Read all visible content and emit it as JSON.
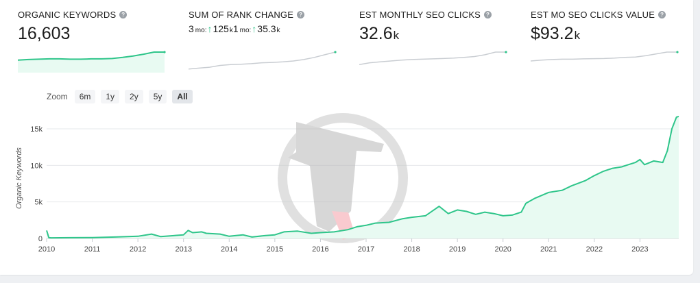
{
  "metrics": {
    "organic_keywords": {
      "label": "ORGANIC KEYWORDS",
      "value": "16,603",
      "spark": [
        0.55,
        0.58,
        0.6,
        0.62,
        0.62,
        0.6,
        0.6,
        0.62,
        0.62,
        0.64,
        0.7,
        0.78,
        0.88,
        1.0,
        1.0
      ]
    },
    "rank_change": {
      "label": "SUM OF RANK CHANGE",
      "p1_prefix": "3",
      "p1_period": "mo:",
      "p1_value": "125",
      "p1_unit": "k",
      "p2_prefix": "1",
      "p2_period": "mo:",
      "p2_value": "35.3",
      "p2_unit": "k",
      "spark": [
        0.05,
        0.1,
        0.15,
        0.25,
        0.3,
        0.32,
        0.35,
        0.4,
        0.42,
        0.45,
        0.5,
        0.58,
        0.7,
        0.85,
        1.0
      ]
    },
    "seo_clicks": {
      "label": "EST MONTHLY SEO CLICKS",
      "value": "32.6",
      "unit": "k",
      "spark": [
        0.3,
        0.4,
        0.45,
        0.5,
        0.55,
        0.58,
        0.6,
        0.62,
        0.64,
        0.66,
        0.7,
        0.75,
        0.85,
        1.0,
        1.0
      ]
    },
    "seo_clicks_value": {
      "label": "EST MO SEO CLICKS VALUE",
      "value": "$93.2",
      "unit": "k",
      "spark": [
        0.5,
        0.55,
        0.58,
        0.6,
        0.6,
        0.62,
        0.63,
        0.64,
        0.66,
        0.7,
        0.72,
        0.8,
        0.9,
        1.0,
        1.0
      ]
    }
  },
  "colors": {
    "accent": "#2ec58a",
    "fill": "#e8faf2",
    "spark_gray": "#c9cdd2"
  },
  "zoom": {
    "label": "Zoom",
    "options": [
      "6m",
      "1y",
      "2y",
      "5y",
      "All"
    ],
    "active": "All"
  },
  "chart_data": {
    "type": "area",
    "title": "",
    "xlabel": "",
    "ylabel": "Organic Keywords",
    "x_ticks": [
      "2010",
      "2011",
      "2012",
      "2013",
      "2014",
      "2015",
      "2016",
      "2017",
      "2018",
      "2019",
      "2020",
      "2021",
      "2022",
      "2023"
    ],
    "y_ticks": [
      "0",
      "5k",
      "10k",
      "15k"
    ],
    "ylim": [
      0,
      16500
    ],
    "xlim": [
      2010.0,
      2023.85
    ],
    "grid": true,
    "x": [
      2010.0,
      2010.05,
      2010.1,
      2010.5,
      2011.0,
      2011.5,
      2012.0,
      2012.3,
      2012.5,
      2013.0,
      2013.1,
      2013.2,
      2013.4,
      2013.5,
      2013.8,
      2014.0,
      2014.3,
      2014.5,
      2014.8,
      2015.0,
      2015.2,
      2015.5,
      2015.8,
      2016.0,
      2016.3,
      2016.6,
      2016.8,
      2017.0,
      2017.2,
      2017.5,
      2017.8,
      2018.0,
      2018.3,
      2018.6,
      2018.8,
      2019.0,
      2019.2,
      2019.4,
      2019.6,
      2019.8,
      2020.0,
      2020.2,
      2020.4,
      2020.5,
      2020.7,
      2021.0,
      2021.3,
      2021.5,
      2021.8,
      2022.0,
      2022.2,
      2022.4,
      2022.6,
      2022.7,
      2022.9,
      2023.0,
      2023.1,
      2023.3,
      2023.5,
      2023.6,
      2023.7,
      2023.8,
      2023.85
    ],
    "values": [
      1100,
      100,
      80,
      100,
      120,
      200,
      300,
      600,
      250,
      500,
      1100,
      800,
      900,
      700,
      600,
      300,
      500,
      200,
      400,
      500,
      900,
      1000,
      700,
      800,
      900,
      1200,
      1600,
      1800,
      2100,
      2200,
      2700,
      2900,
      3100,
      4400,
      3400,
      3900,
      3700,
      3300,
      3600,
      3400,
      3100,
      3200,
      3600,
      4800,
      5500,
      6300,
      6600,
      7200,
      7900,
      8600,
      9200,
      9600,
      9800,
      10000,
      10400,
      10800,
      10100,
      10600,
      10400,
      12000,
      15000,
      16600,
      16700
    ]
  }
}
